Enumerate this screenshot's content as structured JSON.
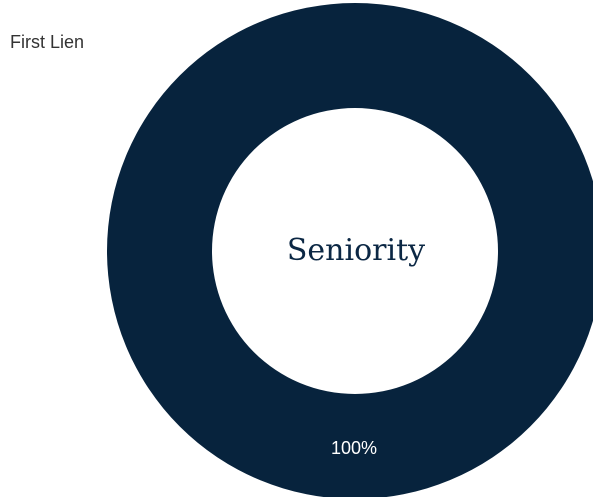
{
  "chart_data": {
    "type": "pie",
    "title": "Seniority",
    "categories": [
      "First Lien"
    ],
    "values": [
      100
    ],
    "data_labels": [
      "100%"
    ],
    "legend_position": "top-left",
    "donut": true,
    "colors": [
      "#07233d"
    ]
  }
}
